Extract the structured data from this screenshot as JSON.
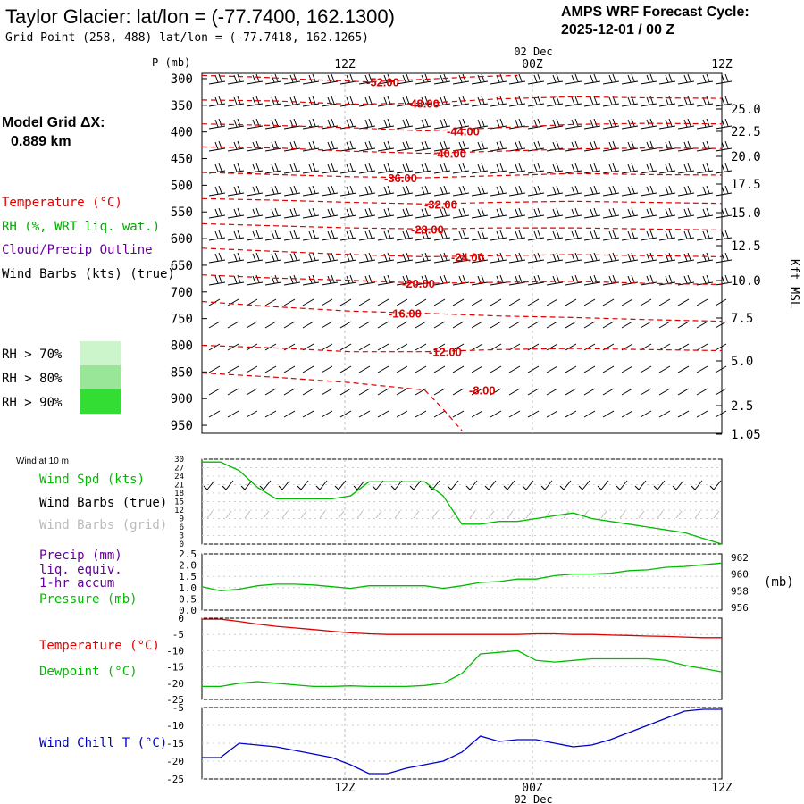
{
  "header": {
    "title": "Taylor Glacier:  lat/lon = (-77.7400, 162.1300)",
    "subtitle": "Grid Point (258, 488) lat/lon = (-77.7418, 162.1265)",
    "cycle_label": "AMPS WRF Forecast Cycle:",
    "cycle_value": "2025-12-01 / 00  Z"
  },
  "sidebar": {
    "model_grid_label": "Model Grid ΔX:",
    "model_grid_value": "0.889 km",
    "legend": [
      {
        "text": "Temperature (°C)",
        "color": "#dd0000"
      },
      {
        "text": "RH (%, WRT liq. wat.)",
        "color": "#00aa00"
      },
      {
        "text": "Cloud/Precip Outline",
        "color": "#660099"
      },
      {
        "text": "Wind Barbs (kts) (true)",
        "color": "#000000"
      }
    ],
    "rh_keys": [
      {
        "text": "RH > 70%",
        "color": "#ccf5cc"
      },
      {
        "text": "RH > 80%",
        "color": "#99e699"
      },
      {
        "text": "RH > 90%",
        "color": "#33dd33"
      }
    ]
  },
  "time_axis": {
    "ticks": [
      "12Z",
      "00Z",
      "12Z"
    ],
    "date": "02 Dec"
  },
  "chart_data": [
    {
      "type": "line",
      "name": "upper-air-cross-section",
      "ylabel": "P (mb)",
      "y2label": "Kft MSL",
      "pressure_ticks": [
        "300",
        "350",
        "400",
        "450",
        "500",
        "550",
        "600",
        "650",
        "700",
        "750",
        "800",
        "850",
        "900",
        "950"
      ],
      "height_ticks": [
        "25.0",
        "22.5",
        "20.0",
        "17.5",
        "15.0",
        "12.5",
        "10.0",
        "7.5",
        "5.0",
        "2.5",
        "1.05"
      ],
      "contours": [
        {
          "label": "-52.00",
          "points": [
            [
              0,
              294
            ],
            [
              3,
              297
            ],
            [
              6,
              302
            ],
            [
              9,
              306
            ],
            [
              12,
              301
            ],
            [
              15,
              296
            ],
            [
              17,
              294
            ]
          ]
        },
        {
          "label": "-48.00",
          "points": [
            [
              0,
              340
            ],
            [
              4,
              342
            ],
            [
              8,
              348
            ],
            [
              12,
              346
            ],
            [
              16,
              338
            ],
            [
              20,
              334
            ],
            [
              24,
              336
            ],
            [
              28,
              337
            ]
          ]
        },
        {
          "label": "-44.00",
          "points": [
            [
              0,
              385
            ],
            [
              4,
              388
            ],
            [
              8,
              392
            ],
            [
              12,
              398
            ],
            [
              16,
              392
            ],
            [
              20,
              386
            ],
            [
              24,
              384
            ],
            [
              28,
              385
            ]
          ]
        },
        {
          "label": "-40.00",
          "points": [
            [
              0,
              428
            ],
            [
              4,
              430
            ],
            [
              8,
              436
            ],
            [
              12,
              440
            ],
            [
              16,
              436
            ],
            [
              20,
              432
            ],
            [
              24,
              430
            ],
            [
              28,
              431
            ]
          ]
        },
        {
          "label": "-36.00",
          "points": [
            [
              0,
              476
            ],
            [
              4,
              480
            ],
            [
              8,
              484
            ],
            [
              12,
              486
            ],
            [
              16,
              482
            ],
            [
              20,
              478
            ],
            [
              24,
              480
            ],
            [
              28,
              481
            ]
          ]
        },
        {
          "label": "-32.00",
          "points": [
            [
              0,
              525
            ],
            [
              4,
              528
            ],
            [
              8,
              532
            ],
            [
              12,
              535
            ],
            [
              16,
              532
            ],
            [
              20,
              530
            ],
            [
              24,
              532
            ],
            [
              28,
              534
            ]
          ]
        },
        {
          "label": "-28.00",
          "points": [
            [
              0,
              572
            ],
            [
              4,
              576
            ],
            [
              8,
              580
            ],
            [
              12,
              582
            ],
            [
              16,
              580
            ],
            [
              20,
              580
            ],
            [
              24,
              582
            ],
            [
              28,
              584
            ]
          ]
        },
        {
          "label": "-24.00",
          "points": [
            [
              0,
              618
            ],
            [
              4,
              624
            ],
            [
              8,
              630
            ],
            [
              12,
              634
            ],
            [
              16,
              632
            ],
            [
              20,
              630
            ],
            [
              24,
              632
            ],
            [
              28,
              634
            ]
          ]
        },
        {
          "label": "-20.00",
          "points": [
            [
              0,
              668
            ],
            [
              4,
              674
            ],
            [
              8,
              678
            ],
            [
              12,
              684
            ],
            [
              16,
              682
            ],
            [
              20,
              680
            ],
            [
              24,
              684
            ],
            [
              28,
              686
            ]
          ]
        },
        {
          "label": "-16.00",
          "points": [
            [
              0,
              718
            ],
            [
              4,
              728
            ],
            [
              8,
              736
            ],
            [
              12,
              740
            ],
            [
              16,
              745
            ],
            [
              20,
              748
            ],
            [
              24,
              752
            ],
            [
              28,
              755
            ]
          ]
        },
        {
          "label": "-12.00",
          "points": [
            [
              0,
              800
            ],
            [
              4,
              805
            ],
            [
              8,
              812
            ],
            [
              12,
              812
            ],
            [
              16,
              808
            ],
            [
              20,
              806
            ],
            [
              24,
              808
            ],
            [
              28,
              810
            ]
          ]
        },
        {
          "label": "-8.00",
          "points": [
            [
              0,
              852
            ],
            [
              4,
              860
            ],
            [
              8,
              870
            ],
            [
              12,
              884
            ],
            [
              13,
              920
            ],
            [
              14,
              960
            ]
          ]
        }
      ],
      "ylim": [
        290,
        965
      ],
      "xlim": [
        0,
        28
      ]
    },
    {
      "type": "line",
      "name": "wind-10m",
      "title": "Wind at 10 m",
      "series_labels": [
        {
          "text": "Wind Spd (kts)",
          "color": "#00bb00"
        },
        {
          "text": "Wind Barbs (true)",
          "color": "#000000"
        },
        {
          "text": "Wind Barbs (grid)",
          "color": "#bbbbbb"
        }
      ],
      "yticks": [
        "30",
        "27",
        "24",
        "21",
        "18",
        "15",
        "12",
        "9",
        "6",
        "3",
        "0"
      ],
      "ylim": [
        0,
        30
      ],
      "x": [
        0,
        1,
        2,
        3,
        4,
        5,
        6,
        7,
        8,
        9,
        10,
        11,
        12,
        13,
        14,
        15,
        16,
        17,
        18,
        19,
        20,
        21,
        22,
        23,
        24,
        25,
        26,
        27,
        28
      ],
      "values": [
        29,
        29,
        26,
        20,
        16,
        16,
        16,
        16,
        17,
        22,
        22,
        22,
        22,
        17,
        7,
        7,
        8,
        8,
        9,
        10,
        11,
        9,
        8,
        7,
        6,
        5,
        4,
        2,
        0
      ]
    },
    {
      "type": "line",
      "name": "precip-pressure",
      "series_labels": [
        {
          "text": "Precip (mm)",
          "color": "#660099"
        },
        {
          "text": "liq. equiv.",
          "color": "#660099"
        },
        {
          "text": "1-hr accum",
          "color": "#660099"
        },
        {
          "text": "Pressure (mb)",
          "color": "#00bb00"
        }
      ],
      "yticks_left": [
        "2.5",
        "2.0",
        "1.5",
        "1.0",
        "0.5",
        "0.0"
      ],
      "yticks_right": [
        "962",
        "960",
        "958",
        "956"
      ],
      "y2label": "(mb)",
      "ylim": [
        0,
        2.5
      ],
      "y2lim": [
        955.7,
        962.4
      ],
      "x": [
        0,
        1,
        2,
        3,
        4,
        5,
        6,
        7,
        8,
        9,
        10,
        11,
        12,
        13,
        14,
        15,
        16,
        17,
        18,
        19,
        20,
        21,
        22,
        23,
        24,
        25,
        26,
        27,
        28
      ],
      "pressure": [
        958.5,
        958.0,
        958.2,
        958.6,
        958.8,
        958.8,
        958.7,
        958.5,
        958.3,
        958.6,
        958.6,
        958.6,
        958.6,
        958.3,
        958.6,
        959.0,
        959.1,
        959.4,
        959.4,
        959.8,
        960.0,
        960.0,
        960.1,
        960.4,
        960.5,
        960.8,
        960.9,
        961.1,
        961.3
      ]
    },
    {
      "type": "line",
      "name": "temperature-dewpoint",
      "series_labels": [
        {
          "text": "Temperature (°C)",
          "color": "#dd0000"
        },
        {
          "text": "Dewpoint (°C)",
          "color": "#00bb00"
        }
      ],
      "yticks": [
        "0",
        "-5",
        "-10",
        "-15",
        "-20",
        "-25"
      ],
      "ylim": [
        -25,
        0
      ],
      "x": [
        0,
        1,
        2,
        3,
        4,
        5,
        6,
        7,
        8,
        9,
        10,
        11,
        12,
        13,
        14,
        15,
        16,
        17,
        18,
        19,
        20,
        21,
        22,
        23,
        24,
        25,
        26,
        27,
        28
      ],
      "series": [
        {
          "name": "Temperature",
          "values": [
            -0.3,
            -0.3,
            -1.0,
            -1.8,
            -2.5,
            -3.0,
            -3.5,
            -4.0,
            -4.5,
            -4.8,
            -5.0,
            -5.0,
            -5.0,
            -5.0,
            -5.0,
            -5.0,
            -5.0,
            -5.0,
            -4.8,
            -4.8,
            -5.0,
            -5.0,
            -5.2,
            -5.3,
            -5.5,
            -5.6,
            -5.8,
            -6.0,
            -6.0
          ]
        },
        {
          "name": "Dewpoint",
          "values": [
            -21,
            -21,
            -20,
            -19.5,
            -20,
            -20.5,
            -21,
            -21,
            -20.8,
            -21,
            -21,
            -21,
            -20.7,
            -20,
            -17,
            -11,
            -10.5,
            -10,
            -13,
            -13.5,
            -13,
            -12.5,
            -12.5,
            -12.5,
            -12.5,
            -13,
            -14.5,
            -15.5,
            -16.5
          ]
        }
      ]
    },
    {
      "type": "line",
      "name": "wind-chill",
      "series_labels": [
        {
          "text": "Wind Chill T (°C)",
          "color": "#0000cc"
        }
      ],
      "yticks": [
        "-5",
        "-10",
        "-15",
        "-20",
        "-25"
      ],
      "ylim": [
        -25,
        -5
      ],
      "x": [
        0,
        1,
        2,
        3,
        4,
        5,
        6,
        7,
        8,
        9,
        10,
        11,
        12,
        13,
        14,
        15,
        16,
        17,
        18,
        19,
        20,
        21,
        22,
        23,
        24,
        25,
        26,
        27,
        28
      ],
      "values": [
        -19,
        -19,
        -15,
        -15.5,
        -16,
        -17,
        -18,
        -19,
        -21,
        -23.5,
        -23.5,
        -22,
        -21,
        -20,
        -17.5,
        -13,
        -14.5,
        -14,
        -14,
        -15,
        -16,
        -15.5,
        -14,
        -12,
        -10,
        -8,
        -6,
        -5.5,
        -5.5
      ]
    }
  ]
}
